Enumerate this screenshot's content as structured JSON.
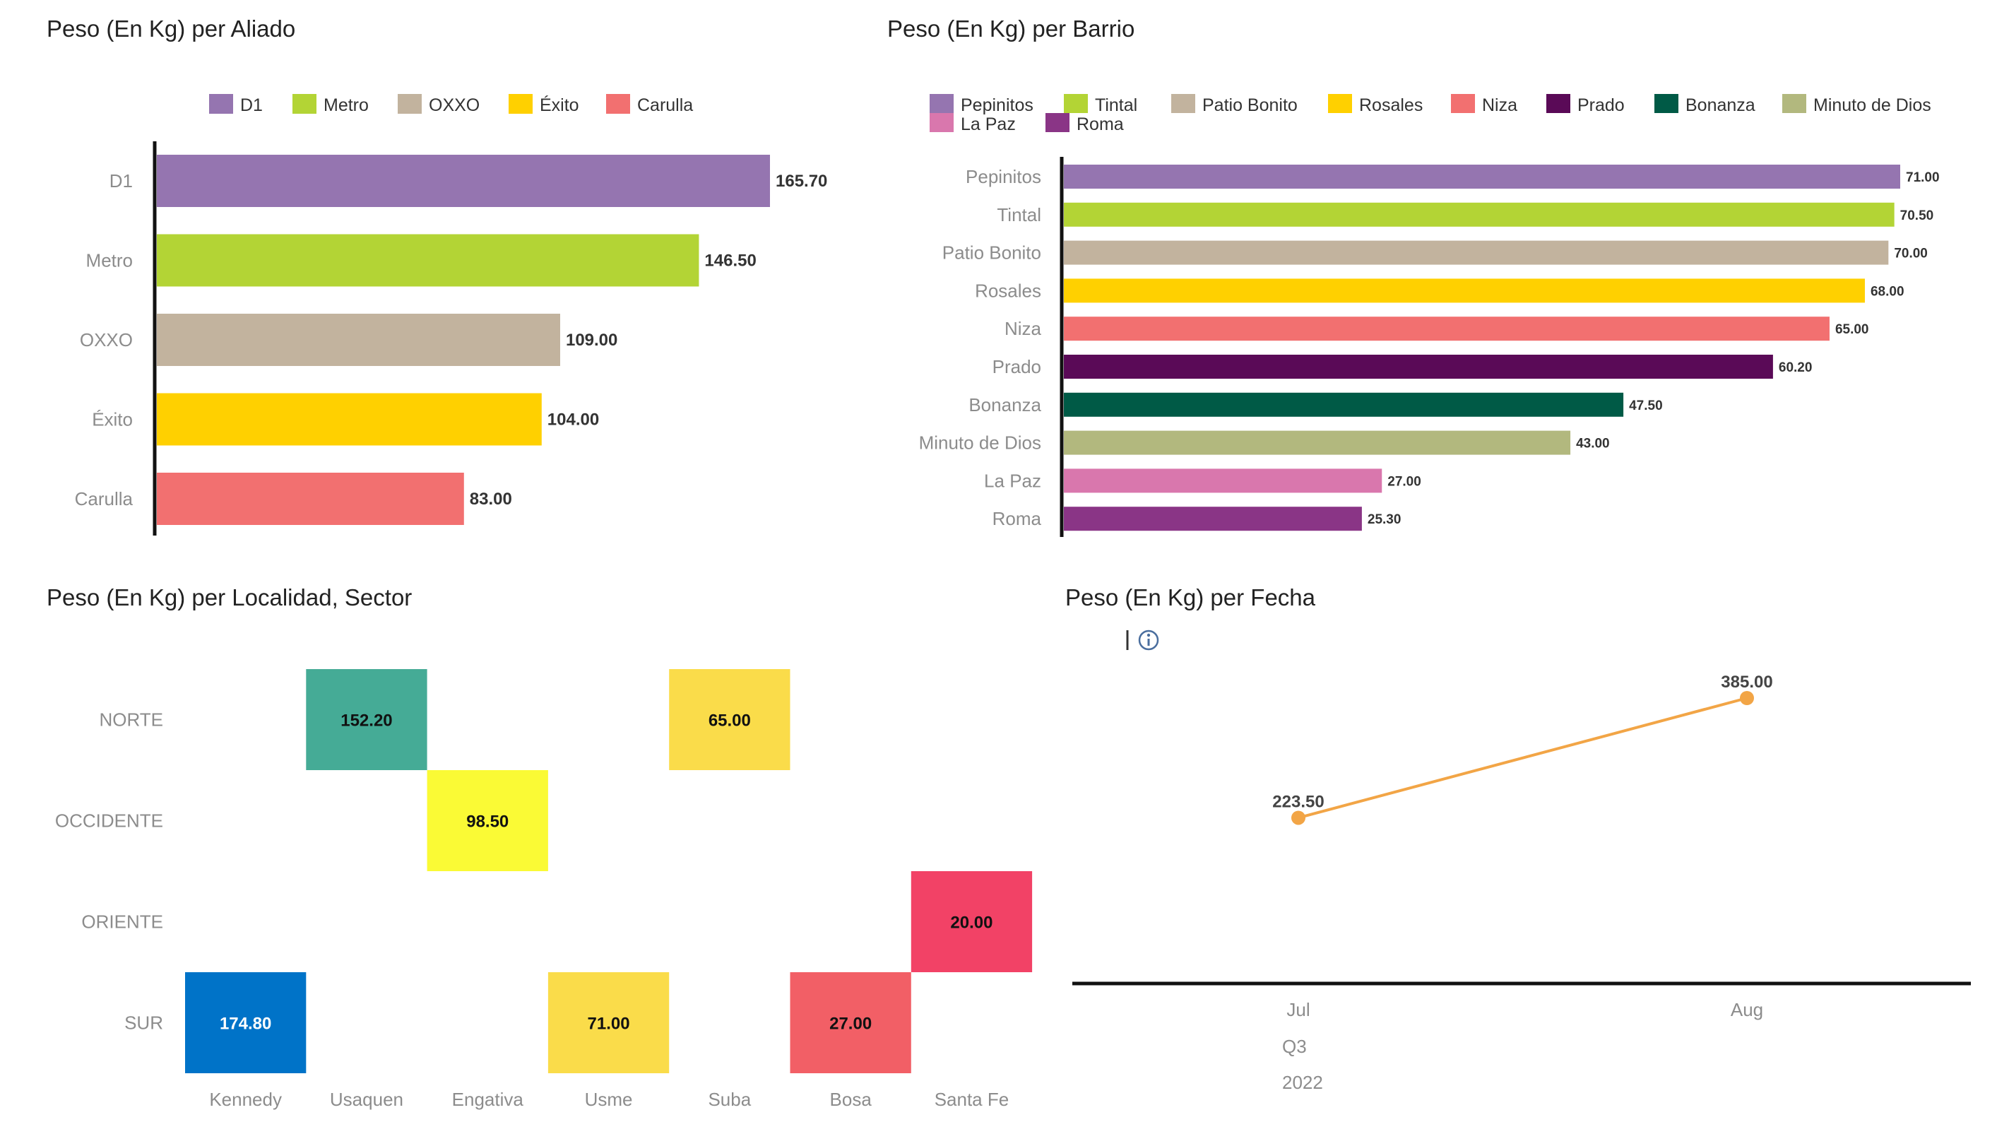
{
  "chart_data": [
    {
      "type": "bar",
      "orientation": "horizontal",
      "title": "Peso (En Kg) per Aliado",
      "categories": [
        "D1",
        "Metro",
        "OXXO",
        "Éxito",
        "Carulla"
      ],
      "values": [
        165.7,
        146.5,
        109.0,
        104.0,
        83.0
      ],
      "value_labels": [
        "165.70",
        "146.50",
        "109.00",
        "104.00",
        "83.00"
      ],
      "colors": [
        "#9575b0",
        "#b3d435",
        "#c2b39e",
        "#ffd000",
        "#f27070"
      ],
      "legend": [
        "D1",
        "Metro",
        "OXXO",
        "Éxito",
        "Carulla"
      ],
      "legend_position": "top",
      "xlim": [
        0,
        165.7
      ],
      "grid": false
    },
    {
      "type": "bar",
      "orientation": "horizontal",
      "title": "Peso (En Kg) per Barrio",
      "categories": [
        "Pepinitos",
        "Tintal",
        "Patio Bonito",
        "Rosales",
        "Niza",
        "Prado",
        "Bonanza",
        "Minuto de Dios",
        "La Paz",
        "Roma"
      ],
      "values": [
        71.0,
        70.5,
        70.0,
        68.0,
        65.0,
        60.2,
        47.5,
        43.0,
        27.0,
        25.3
      ],
      "value_labels": [
        "71.00",
        "70.50",
        "70.00",
        "68.00",
        "65.00",
        "60.20",
        "47.50",
        "43.00",
        "27.00",
        "25.30"
      ],
      "colors": [
        "#9575b0",
        "#b3d435",
        "#c2b39e",
        "#ffd000",
        "#f27070",
        "#5a0a57",
        "#005a46",
        "#b2b87e",
        "#d977ad",
        "#8a3586"
      ],
      "legend": [
        "Pepinitos",
        "Tintal",
        "Patio Bonito",
        "Rosales",
        "Niza",
        "Prado",
        "Bonanza",
        "Minuto de Dios",
        "La Paz",
        "Roma"
      ],
      "legend_position": "top",
      "xlim": [
        0,
        71.0
      ],
      "grid": false
    },
    {
      "type": "heatmap",
      "title": "Peso (En Kg) per Localidad, Sector",
      "x": [
        "Kennedy",
        "Usaquen",
        "Engativa",
        "Usme",
        "Suba",
        "Bosa",
        "Santa Fe"
      ],
      "y": [
        "NORTE",
        "OCCIDENTE",
        "ORIENTE",
        "SUR"
      ],
      "cells": [
        {
          "x": "Usaquen",
          "y": "NORTE",
          "value": 152.2,
          "label": "152.20",
          "color": "#45ab96",
          "text_color": "#111111"
        },
        {
          "x": "Suba",
          "y": "NORTE",
          "value": 65.0,
          "label": "65.00",
          "color": "#fadc4a",
          "text_color": "#111111"
        },
        {
          "x": "Engativa",
          "y": "OCCIDENTE",
          "value": 98.5,
          "label": "98.50",
          "color": "#fafa35",
          "text_color": "#111111"
        },
        {
          "x": "Santa Fe",
          "y": "ORIENTE",
          "value": 20.0,
          "label": "20.00",
          "color": "#f24266",
          "text_color": "#111111"
        },
        {
          "x": "Kennedy",
          "y": "SUR",
          "value": 174.8,
          "label": "174.80",
          "color": "#0073c8",
          "text_color": "#ffffff"
        },
        {
          "x": "Usme",
          "y": "SUR",
          "value": 71.0,
          "label": "71.00",
          "color": "#fadc4a",
          "text_color": "#111111"
        },
        {
          "x": "Bosa",
          "y": "SUR",
          "value": 27.0,
          "label": "27.00",
          "color": "#f25f66",
          "text_color": "#111111"
        }
      ]
    },
    {
      "type": "line",
      "title": "Peso (En Kg) per Fecha",
      "x": [
        "Jul",
        "Aug"
      ],
      "x_group_labels": [
        "Q3",
        "2022"
      ],
      "values": [
        223.5,
        385.0
      ],
      "value_labels": [
        "223.50",
        "385.00"
      ],
      "color": "#f2a546",
      "ylim": [
        0,
        450
      ],
      "grid": false,
      "info_icon": "info-icon"
    }
  ]
}
